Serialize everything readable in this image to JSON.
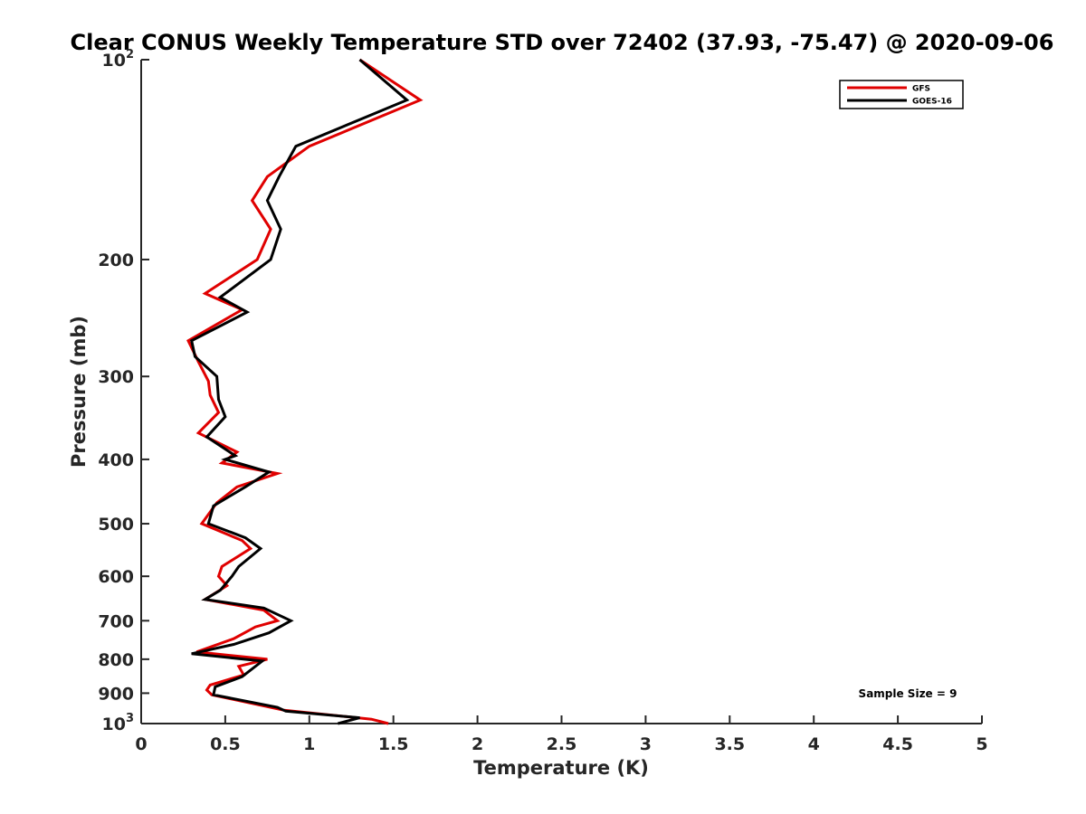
{
  "colors": {
    "gfs": "#e00000",
    "goes": "#000000",
    "axis": "#262626"
  },
  "chart_data": {
    "type": "line",
    "title": "Clear CONUS Weekly Temperature STD over 72402 (37.93, -75.47) @ 2020-09-06",
    "xlabel": "Temperature (K)",
    "ylabel": "Pressure (mb)",
    "xlim": [
      0,
      5
    ],
    "ylim": [
      100,
      1000
    ],
    "y_scale": "log",
    "y_reversed": true,
    "grid": false,
    "legend_position": "top-right",
    "x_ticks": [
      {
        "value": 0,
        "label": "0"
      },
      {
        "value": 0.5,
        "label": "0.5"
      },
      {
        "value": 1,
        "label": "1"
      },
      {
        "value": 1.5,
        "label": "1.5"
      },
      {
        "value": 2,
        "label": "2"
      },
      {
        "value": 2.5,
        "label": "2.5"
      },
      {
        "value": 3,
        "label": "3"
      },
      {
        "value": 3.5,
        "label": "3.5"
      },
      {
        "value": 4,
        "label": "4"
      },
      {
        "value": 4.5,
        "label": "4.5"
      },
      {
        "value": 5,
        "label": "5"
      }
    ],
    "y_ticks": [
      {
        "value": 100,
        "label": "10",
        "exponent": "2"
      },
      {
        "value": 200,
        "label": "200"
      },
      {
        "value": 300,
        "label": "300"
      },
      {
        "value": 400,
        "label": "400"
      },
      {
        "value": 500,
        "label": "500"
      },
      {
        "value": 600,
        "label": "600"
      },
      {
        "value": 700,
        "label": "700"
      },
      {
        "value": 800,
        "label": "800"
      },
      {
        "value": 900,
        "label": "900"
      },
      {
        "value": 1000,
        "label": "10",
        "exponent": "3"
      }
    ],
    "series": [
      {
        "name": "GFS",
        "color": "#e00000",
        "points": [
          [
            1.3,
            100
          ],
          [
            1.66,
            115
          ],
          [
            1.0,
            135
          ],
          [
            0.75,
            150
          ],
          [
            0.66,
            163
          ],
          [
            0.77,
            180
          ],
          [
            0.69,
            200
          ],
          [
            0.38,
            225
          ],
          [
            0.6,
            238
          ],
          [
            0.28,
            265
          ],
          [
            0.34,
            285
          ],
          [
            0.4,
            305
          ],
          [
            0.41,
            320
          ],
          [
            0.46,
            340
          ],
          [
            0.34,
            365
          ],
          [
            0.57,
            390
          ],
          [
            0.48,
            405
          ],
          [
            0.81,
            420
          ],
          [
            0.57,
            440
          ],
          [
            0.45,
            465
          ],
          [
            0.36,
            500
          ],
          [
            0.6,
            530
          ],
          [
            0.65,
            545
          ],
          [
            0.48,
            580
          ],
          [
            0.46,
            600
          ],
          [
            0.51,
            620
          ],
          [
            0.38,
            650
          ],
          [
            0.73,
            675
          ],
          [
            0.81,
            700
          ],
          [
            0.68,
            715
          ],
          [
            0.55,
            745
          ],
          [
            0.33,
            780
          ],
          [
            0.75,
            800
          ],
          [
            0.58,
            820
          ],
          [
            0.61,
            845
          ],
          [
            0.41,
            875
          ],
          [
            0.39,
            890
          ],
          [
            0.42,
            905
          ],
          [
            0.85,
            955
          ],
          [
            1.37,
            985
          ],
          [
            1.47,
            1000
          ]
        ]
      },
      {
        "name": "GOES-16",
        "color": "#000000",
        "points": [
          [
            1.3,
            100
          ],
          [
            1.58,
            115
          ],
          [
            0.92,
            135
          ],
          [
            0.82,
            150
          ],
          [
            0.75,
            163
          ],
          [
            0.83,
            180
          ],
          [
            0.77,
            200
          ],
          [
            0.47,
            228
          ],
          [
            0.63,
            240
          ],
          [
            0.3,
            265
          ],
          [
            0.32,
            280
          ],
          [
            0.45,
            300
          ],
          [
            0.46,
            325
          ],
          [
            0.5,
            345
          ],
          [
            0.39,
            370
          ],
          [
            0.56,
            395
          ],
          [
            0.5,
            400
          ],
          [
            0.76,
            418
          ],
          [
            0.62,
            440
          ],
          [
            0.43,
            470
          ],
          [
            0.4,
            500
          ],
          [
            0.62,
            525
          ],
          [
            0.71,
            545
          ],
          [
            0.58,
            580
          ],
          [
            0.54,
            600
          ],
          [
            0.47,
            630
          ],
          [
            0.38,
            650
          ],
          [
            0.73,
            670
          ],
          [
            0.89,
            700
          ],
          [
            0.76,
            730
          ],
          [
            0.55,
            760
          ],
          [
            0.3,
            785
          ],
          [
            0.72,
            805
          ],
          [
            0.6,
            850
          ],
          [
            0.44,
            880
          ],
          [
            0.43,
            905
          ],
          [
            0.81,
            945
          ],
          [
            0.86,
            958
          ],
          [
            1.3,
            980
          ],
          [
            1.17,
            1000
          ]
        ]
      }
    ],
    "annotation": "Sample Size = 9"
  }
}
